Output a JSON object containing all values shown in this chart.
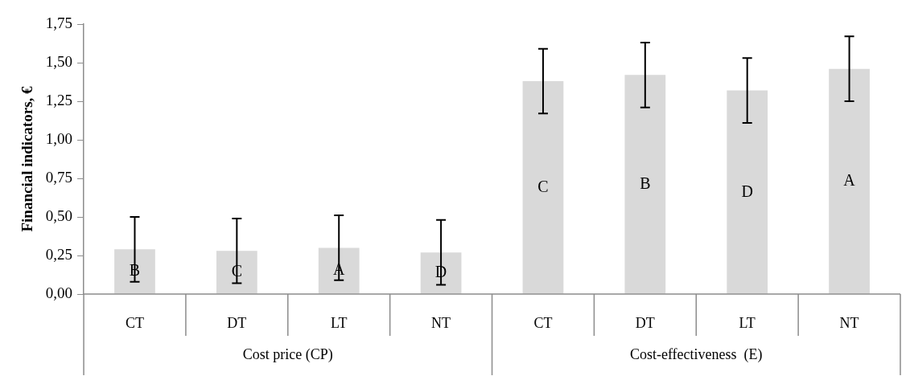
{
  "chart_data": {
    "type": "bar",
    "ylabel": "Financial indicators, €",
    "categories": [
      "CT",
      "DT",
      "LT",
      "NT",
      "CT",
      "DT",
      "LT",
      "NT"
    ],
    "values": [
      0.29,
      0.28,
      0.3,
      0.27,
      1.38,
      1.42,
      1.32,
      1.46
    ],
    "color": "#d9d9d9",
    "errors": [
      [
        0.08,
        0.5
      ],
      [
        0.07,
        0.49
      ],
      [
        0.09,
        0.51
      ],
      [
        0.06,
        0.48
      ],
      [
        1.17,
        1.59
      ],
      [
        1.21,
        1.63
      ],
      [
        1.11,
        1.53
      ],
      [
        1.25,
        1.67
      ]
    ],
    "value_labels": [
      "B",
      "C",
      "A",
      "D",
      "C",
      "B",
      "D",
      "A"
    ],
    "annotations": [
      "Cost price (CP)",
      "Cost-effectiveness  (E)"
    ],
    "ylim": [
      0,
      1.75
    ],
    "yticks": [
      {
        "value": 0,
        "label": "0,00"
      },
      {
        "value": 0.25,
        "label": "0,25"
      },
      {
        "value": 0.5,
        "label": "0,50"
      },
      {
        "value": 0.75,
        "label": "0,75"
      },
      {
        "value": 1,
        "label": "1,00"
      },
      {
        "value": 1.25,
        "label": "1,25"
      },
      {
        "value": 1.5,
        "label": "1,50"
      },
      {
        "value": 1.75,
        "label": "1,75"
      }
    ]
  }
}
